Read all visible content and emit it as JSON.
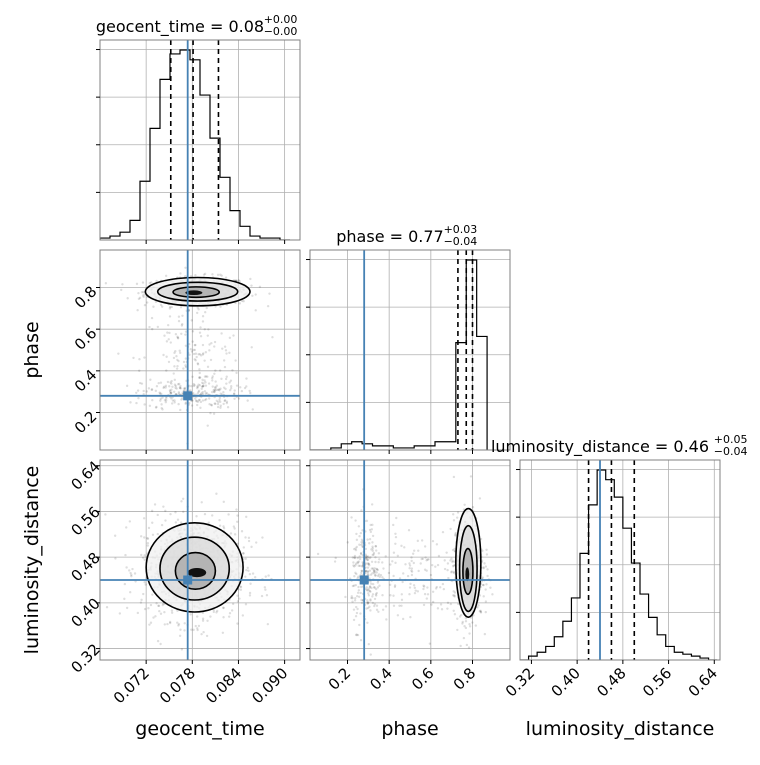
{
  "chart_data": {
    "type": "corner",
    "truth_color": "#4682b4",
    "parameters": [
      {
        "name": "geocent_time",
        "label": "geocent_time",
        "title_text": "geocent_time = 0.08",
        "title_upper": "+0.00",
        "title_lower": "−0.00",
        "range": [
          0.066,
          0.092
        ],
        "ticks": [
          "0.072",
          "0.078",
          "0.084",
          "0.090"
        ],
        "tick_values": [
          0.072,
          0.078,
          0.084,
          0.09
        ],
        "truth": 0.0774,
        "quantiles": [
          0.0752,
          0.0781,
          0.0814
        ],
        "hist_bins": [
          0.066,
          0.0673,
          0.0686,
          0.0699,
          0.0712,
          0.0725,
          0.0738,
          0.0751,
          0.0764,
          0.0777,
          0.079,
          0.0803,
          0.0816,
          0.0829,
          0.0842,
          0.0855,
          0.0868,
          0.0881,
          0.0894,
          0.0907
        ],
        "hist_counts": [
          0.01,
          0.02,
          0.04,
          0.1,
          0.3,
          0.57,
          0.82,
          0.95,
          0.97,
          0.92,
          0.74,
          0.52,
          0.32,
          0.15,
          0.07,
          0.02,
          0.01,
          0.01,
          0.0
        ]
      },
      {
        "name": "phase",
        "label": "phase",
        "title_text": "phase = 0.77",
        "title_upper": "+0.03",
        "title_lower": "−0.04",
        "range": [
          0.02,
          0.98
        ],
        "ticks": [
          "0.2",
          "0.4",
          "0.6",
          "0.8"
        ],
        "tick_values": [
          0.2,
          0.4,
          0.6,
          0.8
        ],
        "truth": 0.28,
        "quantiles": [
          0.73,
          0.77,
          0.8
        ],
        "hist_bins": [
          0.02,
          0.07,
          0.12,
          0.17,
          0.22,
          0.27,
          0.32,
          0.37,
          0.42,
          0.47,
          0.52,
          0.57,
          0.62,
          0.67,
          0.72,
          0.77,
          0.82,
          0.87
        ],
        "hist_counts": [
          0.0,
          0.0,
          0.01,
          0.03,
          0.04,
          0.03,
          0.02,
          0.02,
          0.01,
          0.01,
          0.02,
          0.02,
          0.04,
          0.04,
          0.52,
          0.92,
          0.55
        ]
      },
      {
        "name": "luminosity_distance",
        "label": "luminosity_distance",
        "title_text": "luminosity_distance = 0.46",
        "title_upper": "+0.05",
        "title_lower": "−0.04",
        "range": [
          0.3,
          0.65
        ],
        "ticks": [
          "0.32",
          "0.40",
          "0.48",
          "0.56",
          "0.64"
        ],
        "tick_values": [
          0.32,
          0.4,
          0.48,
          0.56,
          0.64
        ],
        "truth": 0.44,
        "quantiles": [
          0.42,
          0.46,
          0.5
        ],
        "hist_bins": [
          0.3,
          0.315,
          0.33,
          0.345,
          0.36,
          0.375,
          0.39,
          0.405,
          0.42,
          0.435,
          0.45,
          0.465,
          0.48,
          0.495,
          0.51,
          0.525,
          0.54,
          0.555,
          0.57,
          0.585,
          0.6,
          0.615,
          0.63,
          0.645
        ],
        "hist_counts": [
          0.0,
          0.02,
          0.04,
          0.07,
          0.12,
          0.2,
          0.32,
          0.55,
          0.8,
          0.98,
          0.93,
          0.84,
          0.68,
          0.5,
          0.34,
          0.22,
          0.13,
          0.07,
          0.04,
          0.03,
          0.02,
          0.01,
          0.0
        ]
      }
    ],
    "pairs": [
      {
        "x": "geocent_time",
        "y": "phase",
        "clusters": [
          {
            "cx": 0.0786,
            "cy": 0.78,
            "sx": 0.0034,
            "sy": 0.035,
            "n": 520
          },
          {
            "cx": 0.078,
            "cy": 0.45,
            "sx": 0.0033,
            "sy": 0.14,
            "n": 170
          },
          {
            "cx": 0.0779,
            "cy": 0.29,
            "sx": 0.0032,
            "sy": 0.035,
            "n": 230
          }
        ],
        "contours": [
          {
            "cx": 0.0782,
            "cy": 0.775,
            "rx": 0.0011,
            "ry": 0.011
          },
          {
            "cx": 0.0785,
            "cy": 0.778,
            "rx": 0.003,
            "ry": 0.025
          },
          {
            "cx": 0.0787,
            "cy": 0.78,
            "rx": 0.0052,
            "ry": 0.045
          },
          {
            "cx": 0.0787,
            "cy": 0.78,
            "rx": 0.0068,
            "ry": 0.068
          }
        ]
      },
      {
        "x": "geocent_time",
        "y": "luminosity_distance",
        "clusters": [
          {
            "cx": 0.0782,
            "cy": 0.46,
            "sx": 0.0034,
            "sy": 0.045,
            "n": 950
          }
        ],
        "contours": [
          {
            "cx": 0.0786,
            "cy": 0.453,
            "rx": 0.0012,
            "ry": 0.008
          },
          {
            "cx": 0.0784,
            "cy": 0.456,
            "rx": 0.0026,
            "ry": 0.032
          },
          {
            "cx": 0.0783,
            "cy": 0.46,
            "rx": 0.0045,
            "ry": 0.055
          },
          {
            "cx": 0.0783,
            "cy": 0.462,
            "rx": 0.0063,
            "ry": 0.078
          }
        ]
      },
      {
        "x": "phase",
        "y": "luminosity_distance",
        "clusters": [
          {
            "cx": 0.78,
            "cy": 0.46,
            "sx": 0.035,
            "sy": 0.045,
            "n": 600
          },
          {
            "cx": 0.5,
            "cy": 0.45,
            "sx": 0.15,
            "sy": 0.04,
            "n": 170
          },
          {
            "cx": 0.29,
            "cy": 0.45,
            "sx": 0.035,
            "sy": 0.045,
            "n": 230
          }
        ],
        "contours": [
          {
            "cx": 0.775,
            "cy": 0.45,
            "rx": 0.009,
            "ry": 0.012
          },
          {
            "cx": 0.778,
            "cy": 0.455,
            "rx": 0.024,
            "ry": 0.04
          },
          {
            "cx": 0.78,
            "cy": 0.46,
            "rx": 0.042,
            "ry": 0.075
          },
          {
            "cx": 0.78,
            "cy": 0.47,
            "rx": 0.06,
            "ry": 0.095
          }
        ]
      }
    ],
    "grid": true
  }
}
